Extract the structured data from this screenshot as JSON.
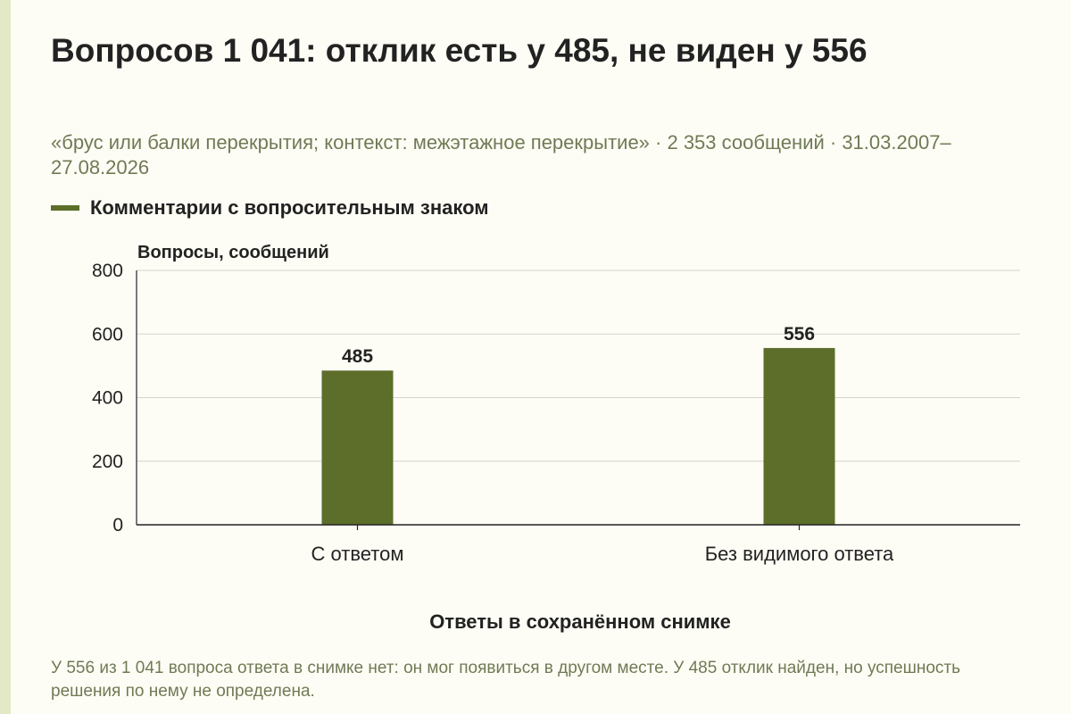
{
  "title": "Вопросов 1 041: отклик есть у 485, не виден у 556",
  "subtitle": "«брус или балки перекрытия; контекст: межэтажное перекрытие» · 2 353 сообщений · 31.03.2007–27.08.2026",
  "footnote": "У 556 из 1 041 вопроса ответа в снимке нет: он мог появиться в другом месте. У 485 отклик найден, но успешность решения по нему не определена.",
  "colors": {
    "bar": "#5c6e2a",
    "accent_strip": "#e3e9c4",
    "background": "#fefdf5"
  },
  "chart_data": {
    "type": "bar",
    "categories": [
      "С ответом",
      "Без видимого ответа"
    ],
    "series": [
      {
        "name": "Комментарии с вопросительным знаком",
        "values": [
          485,
          556
        ]
      }
    ],
    "data_labels": [
      "485",
      "556"
    ],
    "xlabel": "Ответы в сохранённом снимке",
    "ylabel": "Вопросы, сообщений",
    "ylim": [
      0,
      800
    ],
    "yticks": [
      0,
      200,
      400,
      600,
      800
    ],
    "grid": true,
    "legend_position": "top-left"
  }
}
